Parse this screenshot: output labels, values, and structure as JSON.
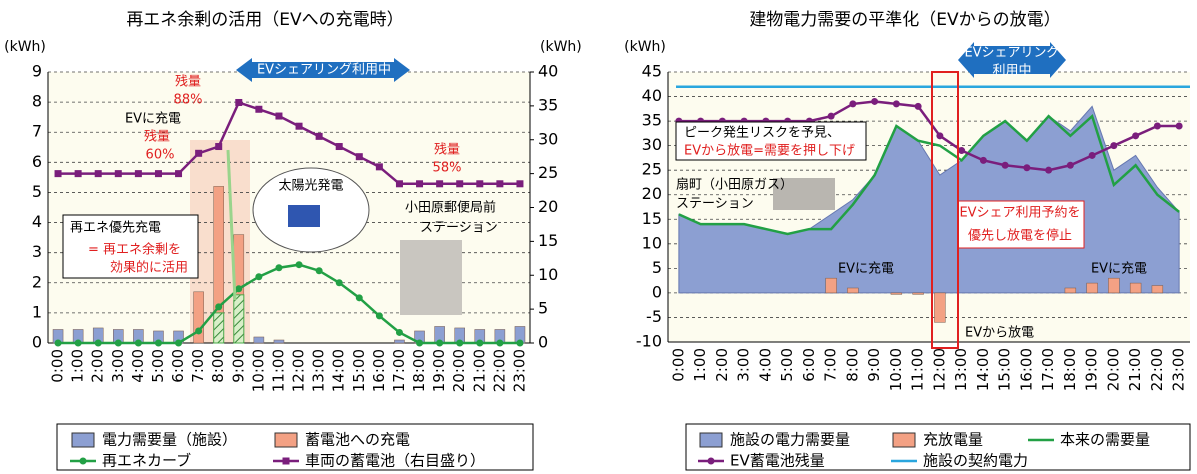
{
  "chart_data": [
    {
      "type": "combo",
      "title": "再エネ余剰の活用（EVへの充電時）",
      "y_label": "(kWh)",
      "y2_label": "(kWh)",
      "categories": [
        "0:00",
        "1:00",
        "2:00",
        "3:00",
        "4:00",
        "5:00",
        "6:00",
        "7:00",
        "8:00",
        "9:00",
        "10:00",
        "11:00",
        "12:00",
        "13:00",
        "14:00",
        "15:00",
        "16:00",
        "17:00",
        "18:00",
        "19:00",
        "20:00",
        "21:00",
        "22:00",
        "23:00"
      ],
      "ylim": [
        0,
        9
      ],
      "yticks": [
        0,
        1,
        2,
        3,
        4,
        5,
        6,
        7,
        8,
        9
      ],
      "y2lim": [
        0,
        40
      ],
      "y2ticks": [
        0,
        5,
        10,
        15,
        20,
        25,
        30,
        35,
        40
      ],
      "grid": true,
      "series": [
        {
          "name": "電力需要量（施設）",
          "kind": "bar",
          "color": "#8c9fd2",
          "values": [
            0.45,
            0.45,
            0.5,
            0.45,
            0.45,
            0.4,
            0.4,
            null,
            0.3,
            null,
            0.2,
            0.1,
            0,
            0,
            0,
            0,
            0,
            0.1,
            0.4,
            0.55,
            0.5,
            0.45,
            0.45,
            0.55
          ]
        },
        {
          "name": "蓄電池への充電",
          "kind": "bar",
          "color": "#f3a184",
          "values": [
            null,
            null,
            null,
            null,
            null,
            null,
            null,
            1.7,
            5.2,
            3.6,
            null,
            null,
            null,
            null,
            null,
            null,
            null,
            null,
            null,
            null,
            null,
            null,
            null,
            null
          ]
        },
        {
          "name": "再エネカーブ",
          "kind": "line",
          "marker": "circle",
          "color": "#22a045",
          "values": [
            0,
            0,
            0,
            0,
            0,
            0,
            0,
            0.4,
            1.2,
            1.8,
            2.2,
            2.5,
            2.6,
            2.4,
            2.0,
            1.5,
            0.9,
            0.35,
            0,
            0,
            0,
            0,
            0,
            0
          ]
        },
        {
          "name": "車両の蓄電池（右目盛り）",
          "kind": "line",
          "marker": "square",
          "axis": "y2",
          "color": "#7a1e7c",
          "values": [
            25,
            25,
            25,
            25,
            25,
            25,
            25,
            28,
            29,
            35.5,
            34.5,
            33.5,
            32,
            30.5,
            29,
            27.5,
            26,
            23.5,
            23.5,
            23.5,
            23.5,
            23.5,
            23.5,
            23.5
          ]
        }
      ],
      "hatched": {
        "label": "再エネ優先充電",
        "color": "#4aa84a",
        "values": [
          null,
          null,
          null,
          null,
          null,
          null,
          null,
          null,
          1.0,
          1.6,
          null,
          null,
          null,
          null,
          null,
          null,
          null,
          null,
          null,
          null,
          null,
          null,
          null,
          null
        ]
      },
      "annotations": [
        {
          "text": "EVシェアリング利用中",
          "color": "#ffffff"
        },
        {
          "text": "残量",
          "color": "#e02020"
        },
        {
          "text": "88%",
          "color": "#e02020"
        },
        {
          "text": "EVに充電",
          "color": "#000000"
        },
        {
          "text": "残量",
          "color": "#e02020"
        },
        {
          "text": "60%",
          "color": "#e02020"
        },
        {
          "text": "残量",
          "color": "#e02020"
        },
        {
          "text": "58%",
          "color": "#e02020"
        },
        {
          "text": "太陽光発電",
          "color": "#000000"
        },
        {
          "text": "小田原郵便局前",
          "color": "#000000"
        },
        {
          "text": "ステーション",
          "color": "#000000"
        },
        {
          "text": "= 再エネ余剰を",
          "color": "#e02020"
        },
        {
          "text": "効果的に活用",
          "color": "#e02020"
        }
      ]
    },
    {
      "type": "combo",
      "title": "建物電力需要の平準化（EVからの放電）",
      "y_label": "(kWh)",
      "categories": [
        "0:00",
        "1:00",
        "2:00",
        "3:00",
        "4:00",
        "5:00",
        "6:00",
        "7:00",
        "8:00",
        "9:00",
        "10:00",
        "11:00",
        "12:00",
        "13:00",
        "14:00",
        "15:00",
        "16:00",
        "17:00",
        "18:00",
        "19:00",
        "20:00",
        "21:00",
        "22:00",
        "23:00"
      ],
      "ylim": [
        -10,
        45
      ],
      "yticks": [
        -10,
        -5,
        0,
        5,
        10,
        15,
        20,
        25,
        30,
        35,
        40,
        45
      ],
      "grid": true,
      "series": [
        {
          "name": "施設の電力需要量",
          "kind": "area",
          "color": "#8c9fd2",
          "values": [
            16,
            14,
            14,
            14,
            13,
            12,
            13,
            16,
            19,
            24,
            34,
            31,
            24,
            27,
            32,
            35,
            31,
            36,
            33,
            38,
            25,
            28,
            21.5,
            16.5
          ]
        },
        {
          "name": "充放電量",
          "kind": "bar",
          "color": "#f3a184",
          "values": [
            null,
            null,
            null,
            null,
            null,
            null,
            null,
            3,
            1,
            null,
            -0.3,
            -0.3,
            -6,
            null,
            null,
            null,
            null,
            null,
            1,
            2,
            3,
            2,
            1.5,
            null
          ]
        },
        {
          "name": "本来の需要量",
          "kind": "line",
          "color": "#22a045",
          "values": [
            16,
            14,
            14,
            14,
            13,
            12,
            13,
            13,
            18,
            24,
            34,
            31,
            30,
            27,
            32,
            35,
            31,
            36,
            32,
            36,
            22,
            26,
            20,
            16.5
          ]
        },
        {
          "name": "EV蓄電池残量",
          "kind": "line",
          "marker": "circle",
          "color": "#7a1e7c",
          "values": [
            35,
            35,
            35,
            35,
            35,
            35,
            35,
            36,
            38.5,
            39,
            38.5,
            38,
            32,
            29,
            27,
            26,
            25.5,
            25,
            26,
            28,
            30,
            32,
            34,
            34
          ]
        },
        {
          "name": "施設の契約電力",
          "kind": "hline",
          "color": "#2aa6de",
          "value": 42
        }
      ],
      "annotations": [
        {
          "text": "EVシェアリング",
          "color": "#ffffff"
        },
        {
          "text": "利用中",
          "color": "#ffffff"
        },
        {
          "text": "ピーク発生リスクを予見、",
          "color": "#000000"
        },
        {
          "text": "EVから放電=需要を押し下げ",
          "color": "#e02020"
        },
        {
          "text": "扇町（小田原ガス）",
          "color": "#000000"
        },
        {
          "text": "ステーション",
          "color": "#000000"
        },
        {
          "text": "EVシェア利用予約を",
          "color": "#e02020"
        },
        {
          "text": "優先し放電を停止",
          "color": "#e02020"
        },
        {
          "text": "EVに充電",
          "color": "#000000"
        },
        {
          "text": "EVに充電",
          "color": "#000000"
        },
        {
          "text": "EVから放電",
          "color": "#000000"
        }
      ]
    }
  ]
}
